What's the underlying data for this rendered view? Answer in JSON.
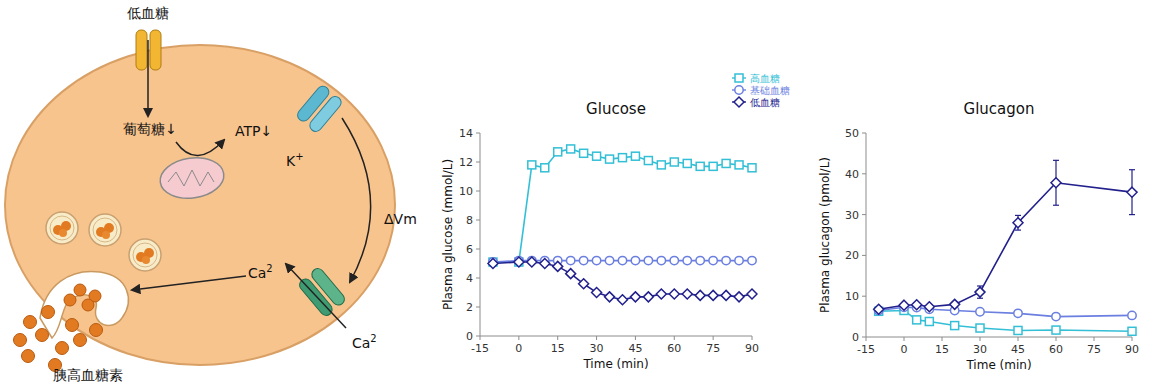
{
  "diagram": {
    "input": "低血糖",
    "glucose": "葡萄糖↓",
    "atp": "ATP↓",
    "k_label": {
      "text": "K",
      "sup": "+"
    },
    "dvm": "ΔVm",
    "ca_in": {
      "text": "Ca",
      "sup": "2"
    },
    "ca_out": {
      "text": "Ca",
      "sup": "2"
    },
    "output": "胰高血糖素"
  },
  "chart_data": [
    {
      "type": "line",
      "title": "Glucose",
      "x_label": "Time (min)",
      "y_label": "Plasma glucose (mmol/L)",
      "x": [
        -10,
        0,
        5,
        10,
        15,
        20,
        25,
        30,
        35,
        40,
        45,
        50,
        55,
        60,
        65,
        70,
        75,
        80,
        85,
        90
      ],
      "series": [
        {
          "name": "高血糖",
          "color": "#33bfd6",
          "marker": "square",
          "values": [
            5.1,
            5.1,
            11.8,
            11.6,
            12.7,
            12.9,
            12.6,
            12.4,
            12.2,
            12.3,
            12.4,
            12.1,
            11.8,
            12.0,
            11.9,
            11.7,
            11.7,
            11.9,
            11.8,
            11.6
          ]
        },
        {
          "name": "基础血糖",
          "color": "#6b7fe0",
          "marker": "circle",
          "values": [
            5.1,
            5.2,
            5.2,
            5.2,
            5.2,
            5.2,
            5.2,
            5.2,
            5.2,
            5.2,
            5.2,
            5.2,
            5.2,
            5.2,
            5.2,
            5.2,
            5.2,
            5.2,
            5.2,
            5.2
          ]
        },
        {
          "name": "低血糖",
          "color": "#22208c",
          "marker": "diamond",
          "values": [
            5.0,
            5.1,
            5.1,
            5.0,
            4.8,
            4.3,
            3.6,
            3.0,
            2.7,
            2.5,
            2.7,
            2.7,
            2.9,
            2.9,
            2.9,
            2.8,
            2.8,
            2.8,
            2.7,
            2.9
          ]
        }
      ],
      "xlim": [
        -15,
        90
      ],
      "xticks": [
        -15,
        0,
        15,
        30,
        45,
        60,
        75,
        90
      ],
      "ylim": [
        0,
        14
      ],
      "yticks": [
        0,
        2,
        4,
        6,
        8,
        10,
        12,
        14
      ],
      "grid": false,
      "legend": "top-right"
    },
    {
      "type": "line",
      "title": "Glucagon",
      "x_label": "Time (min)",
      "y_label": "Plasma glucagon (pmol/L)",
      "x": [
        -10,
        0,
        5,
        10,
        20,
        30,
        45,
        60,
        90
      ],
      "series": [
        {
          "color": "#33bfd6",
          "marker": "square",
          "values": [
            6.3,
            6.5,
            4.2,
            3.8,
            2.8,
            2.2,
            1.6,
            1.7,
            1.4
          ],
          "errors": [
            0.3,
            0.3,
            0.3,
            0.3,
            0.3,
            0.3,
            0.3,
            0.3,
            0.3
          ]
        },
        {
          "color": "#6b7fe0",
          "marker": "circle",
          "values": [
            6.5,
            7.3,
            7.2,
            6.8,
            6.5,
            6.2,
            5.8,
            5.0,
            5.3
          ],
          "errors": [
            0.3,
            0.3,
            0.3,
            0.3,
            0.3,
            0.3,
            0.3,
            0.3,
            0.3
          ]
        },
        {
          "color": "#22208c",
          "marker": "diamond",
          "values": [
            6.8,
            7.8,
            7.9,
            7.4,
            8.0,
            11.0,
            28.0,
            37.8,
            35.5
          ],
          "errors": [
            0.5,
            0.5,
            0.5,
            0.5,
            0.5,
            1.5,
            1.8,
            5.5,
            5.5
          ]
        }
      ],
      "xlim": [
        -15,
        90
      ],
      "xticks": [
        -15,
        0,
        15,
        30,
        45,
        60,
        75,
        90
      ],
      "ylim": [
        0,
        50
      ],
      "yticks": [
        0,
        10,
        20,
        30,
        40,
        50
      ],
      "grid": false
    }
  ]
}
